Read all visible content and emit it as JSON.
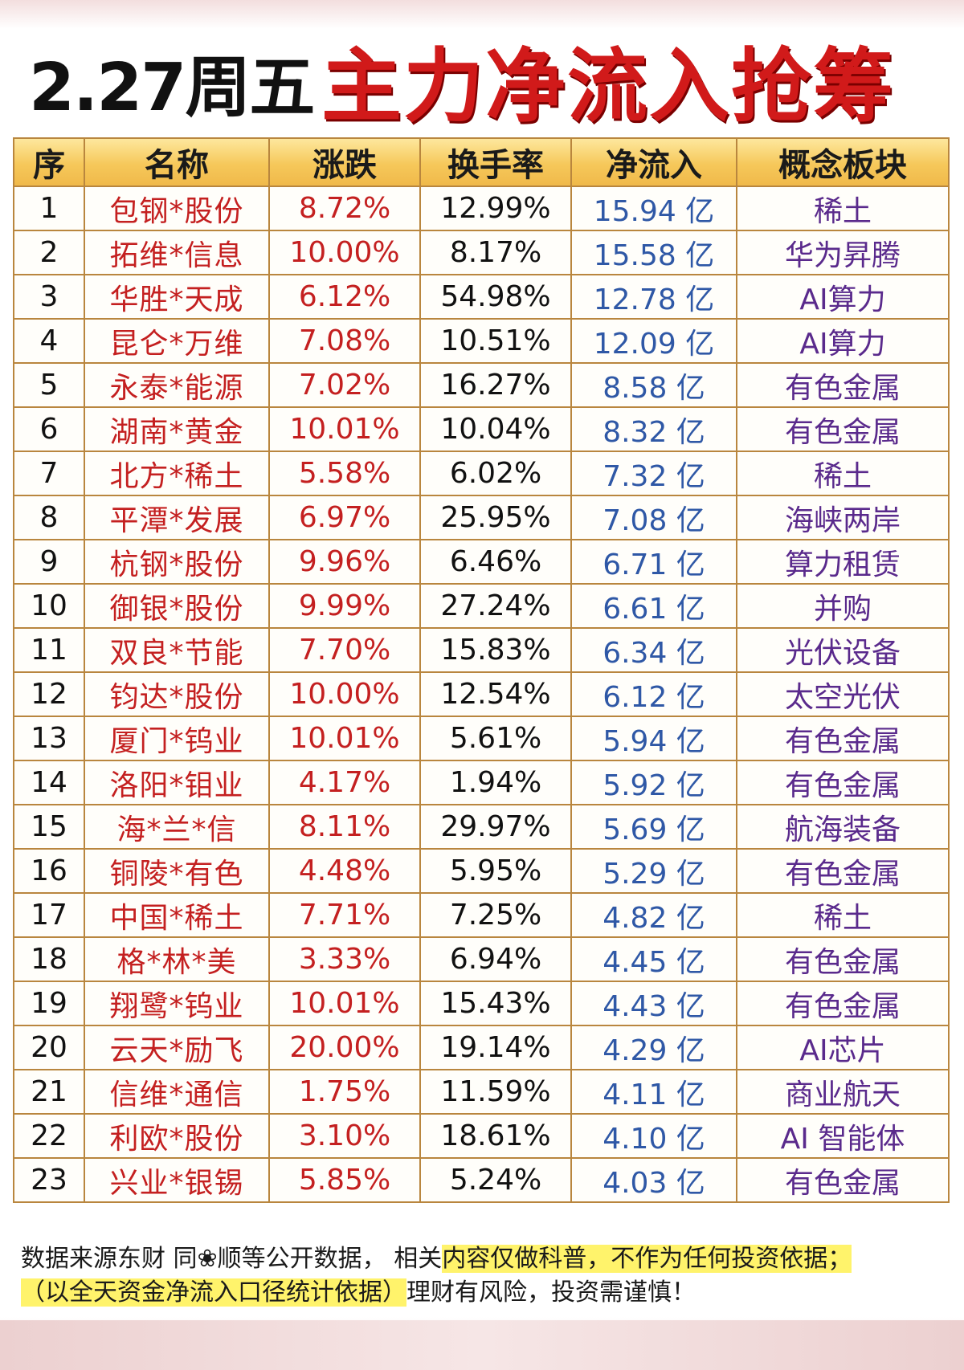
{
  "title": {
    "date": "2.27周五",
    "main": "主力净流入抢筹榜"
  },
  "table": {
    "headers": [
      "序",
      "名称",
      "涨跌",
      "换手率",
      "净流入",
      "概念板块"
    ],
    "rows": [
      [
        "1",
        "包钢*股份",
        "8.72%",
        "12.99%",
        "15.94 亿",
        "稀土"
      ],
      [
        "2",
        "拓维*信息",
        "10.00%",
        "8.17%",
        "15.58 亿",
        "华为昇腾"
      ],
      [
        "3",
        "华胜*天成",
        "6.12%",
        "54.98%",
        "12.78 亿",
        "AI算力"
      ],
      [
        "4",
        "昆仑*万维",
        "7.08%",
        "10.51%",
        "12.09 亿",
        "AI算力"
      ],
      [
        "5",
        "永泰*能源",
        "7.02%",
        "16.27%",
        "8.58 亿",
        "有色金属"
      ],
      [
        "6",
        "湖南*黄金",
        "10.01%",
        "10.04%",
        "8.32 亿",
        "有色金属"
      ],
      [
        "7",
        "北方*稀土",
        "5.58%",
        "6.02%",
        "7.32 亿",
        "稀土"
      ],
      [
        "8",
        "平潭*发展",
        "6.97%",
        "25.95%",
        "7.08 亿",
        "海峡两岸"
      ],
      [
        "9",
        "杭钢*股份",
        "9.96%",
        "6.46%",
        "6.71 亿",
        "算力租赁"
      ],
      [
        "10",
        "御银*股份",
        "9.99%",
        "27.24%",
        "6.61 亿",
        "并购"
      ],
      [
        "11",
        "双良*节能",
        "7.70%",
        "15.83%",
        "6.34 亿",
        "光伏设备"
      ],
      [
        "12",
        "钧达*股份",
        "10.00%",
        "12.54%",
        "6.12 亿",
        "太空光伏"
      ],
      [
        "13",
        "厦门*钨业",
        "10.01%",
        "5.61%",
        "5.94 亿",
        "有色金属"
      ],
      [
        "14",
        "洛阳*钼业",
        "4.17%",
        "1.94%",
        "5.92 亿",
        "有色金属"
      ],
      [
        "15",
        "海*兰*信",
        "8.11%",
        "29.97%",
        "5.69 亿",
        "航海装备"
      ],
      [
        "16",
        "铜陵*有色",
        "4.48%",
        "5.95%",
        "5.29 亿",
        "有色金属"
      ],
      [
        "17",
        "中国*稀土",
        "7.71%",
        "7.25%",
        "4.82 亿",
        "稀土"
      ],
      [
        "18",
        "格*林*美",
        "3.33%",
        "6.94%",
        "4.45 亿",
        "有色金属"
      ],
      [
        "19",
        "翔鹭*钨业",
        "10.01%",
        "15.43%",
        "4.43 亿",
        "有色金属"
      ],
      [
        "20",
        "云天*励飞",
        "20.00%",
        "19.14%",
        "4.29 亿",
        "AI芯片"
      ],
      [
        "21",
        "信维*通信",
        "1.75%",
        "11.59%",
        "4.11 亿",
        "商业航天"
      ],
      [
        "22",
        "利欧*股份",
        "3.10%",
        "18.61%",
        "4.10 亿",
        "AI 智能体"
      ],
      [
        "23",
        "兴业*银锡",
        "5.85%",
        "5.24%",
        "4.03 亿",
        "有色金属"
      ]
    ]
  },
  "footer": {
    "line1_plain": "数据来源东财 同❀顺等公开数据， 相关",
    "line1_highlight": "内容仅做科普，不作为任何投资依据；",
    "line2_highlight": "（以全天资金净流入口径统计依据）",
    "line2_plain": "理财有风险，投资需谨慎！"
  },
  "colors": {
    "title_red": "#d11a1a",
    "name_red": "#c42020",
    "flow_blue": "#2f58a6",
    "concept_purple": "#5a2a8c",
    "header_gold": "#f6c85a",
    "highlight_yellow": "#fff36b"
  }
}
